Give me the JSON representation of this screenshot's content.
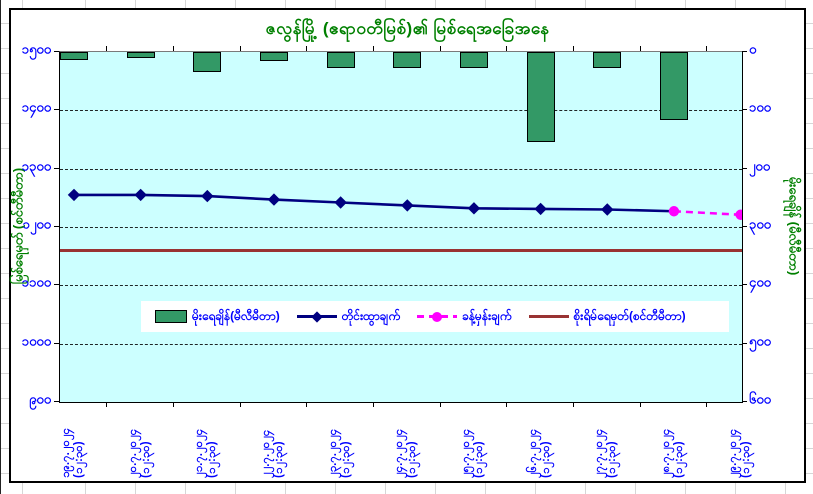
{
  "title": "ဇလွန်မြို့ (ဧရာဝတီမြစ်)၏ မြစ်ရေအခြေအနေ",
  "colors": {
    "title": "#008000",
    "axis_titles": "#008000",
    "tick_labels": "#0000FF",
    "plot_background": "#CCFFFF",
    "rain_bar": "#339966",
    "measured_line": "#000080",
    "forecast_line": "#FF00FF",
    "danger_line": "#993333"
  },
  "left_axis": {
    "title": "မြစ်ရေမှတ် (စင်တီမီတာ)",
    "tick_labels": [
      "၁၅၀၀",
      "၁၄၀၀",
      "၁၃၀၀",
      "၁၂၀၀",
      "၁၁၀၀",
      "၁၀၀၀",
      "၉၀၀"
    ],
    "tick_values": [
      1500,
      1400,
      1300,
      1200,
      1100,
      1000,
      900
    ],
    "min": 900,
    "max": 1500
  },
  "right_axis": {
    "title": "မိုးရေချိန် (မီလီမီတာ)",
    "tick_labels": [
      "၀",
      "၁၀၀",
      "၂၀၀",
      "၃၀၀",
      "၄၀၀",
      "၅၀၀",
      "၆၀၀"
    ],
    "tick_values": [
      0,
      100,
      200,
      300,
      400,
      500,
      600
    ],
    "min": 0,
    "max": 600,
    "reversed": true
  },
  "x_axis": {
    "date_labels": [
      "၁၉.၇.၂၀၂၄",
      "၂၀.၇.၂၀၂၄",
      "၂၁.၇.၂၀၂၄",
      "၂၂.၇.၂၀၂၄",
      "၂၃.၇.၂၀၂၄",
      "၂၄.၇.၂၀၂၄",
      "၂၅.၇.၂၀၂၄",
      "၂၆.၇.၂၀၂၄",
      "၂၇.၇.၂၀၂၄",
      "၂၈.၇.၂၀၂၄",
      "၂၉.၇.၂၀၂၄"
    ],
    "time_label": "(၁၂:၃၀)"
  },
  "legend": {
    "items": [
      {
        "label": "မိုးရေချိန်(မီလီမီတာ)",
        "series": "rainfall",
        "swatch": "bar"
      },
      {
        "label": "တိုင်းထွာချက်",
        "series": "measured",
        "swatch": "line-diamond"
      },
      {
        "label": "ခန့်မှန်းချက်",
        "series": "forecast",
        "swatch": "dashed-dot"
      },
      {
        "label": "စိုးရိမ်ရေမှတ်(စင်တီမီတာ)",
        "series": "danger",
        "swatch": "line"
      }
    ]
  },
  "chart_data": {
    "type": "combo",
    "categories": [
      "၁၉.၇.၂၀၂၄ (၁၂:၃၀)",
      "၂၀.၇.၂၀၂၄ (၁၂:၃၀)",
      "၂၁.၇.၂၀၂၄ (၁၂:၃၀)",
      "၂၂.၇.၂၀၂၄ (၁၂:၃၀)",
      "၂၃.၇.၂၀၂၄ (၁၂:၃၀)",
      "၂၄.၇.၂၀၂၄ (၁၂:၃၀)",
      "၂၅.၇.၂၀၂၄ (၁၂:၃၀)",
      "၂၆.၇.၂၀၂၄ (၁၂:၃၀)",
      "၂၇.၇.၂၀၂၄ (၁၂:၃၀)",
      "၂၈.၇.၂၀၂၄ (၁၂:၃၀)",
      "၂၉.၇.၂၀၂၄ (၁၂:၃၀)"
    ],
    "series": [
      {
        "name": "မိုးရေချိန်(မီလီမီတာ)",
        "type": "bar",
        "axis": "right",
        "unit": "mm",
        "values": [
          14,
          11,
          34,
          16,
          27,
          28,
          27,
          155,
          28,
          117,
          0
        ]
      },
      {
        "name": "တိုင်းထွာချက်",
        "type": "line",
        "axis": "left",
        "unit": "cm",
        "values": [
          1255,
          1255,
          1253,
          1247,
          1242,
          1237,
          1232,
          1231,
          1230,
          1227,
          null
        ]
      },
      {
        "name": "ခန့်မှန်းချက်",
        "type": "line-dashed",
        "axis": "left",
        "unit": "cm",
        "values": [
          null,
          null,
          null,
          null,
          null,
          null,
          null,
          null,
          null,
          1227,
          1221
        ]
      },
      {
        "name": "စိုးရိမ်ရေမှတ်(စင်တီမီတာ)",
        "type": "horizontal-line",
        "axis": "left",
        "unit": "cm",
        "value": 1160
      }
    ],
    "left_ylim": [
      900,
      1500
    ],
    "right_ylim": [
      0,
      600
    ],
    "right_axis_reversed": true,
    "gridline_values": [
      1400,
      1300,
      1200,
      1100,
      1000
    ],
    "legend_position": "inside-bottom",
    "title": "ဇလွန်မြို့ (ဧရာဝတီမြစ်)၏ မြစ်ရေအခြေအနေ"
  }
}
